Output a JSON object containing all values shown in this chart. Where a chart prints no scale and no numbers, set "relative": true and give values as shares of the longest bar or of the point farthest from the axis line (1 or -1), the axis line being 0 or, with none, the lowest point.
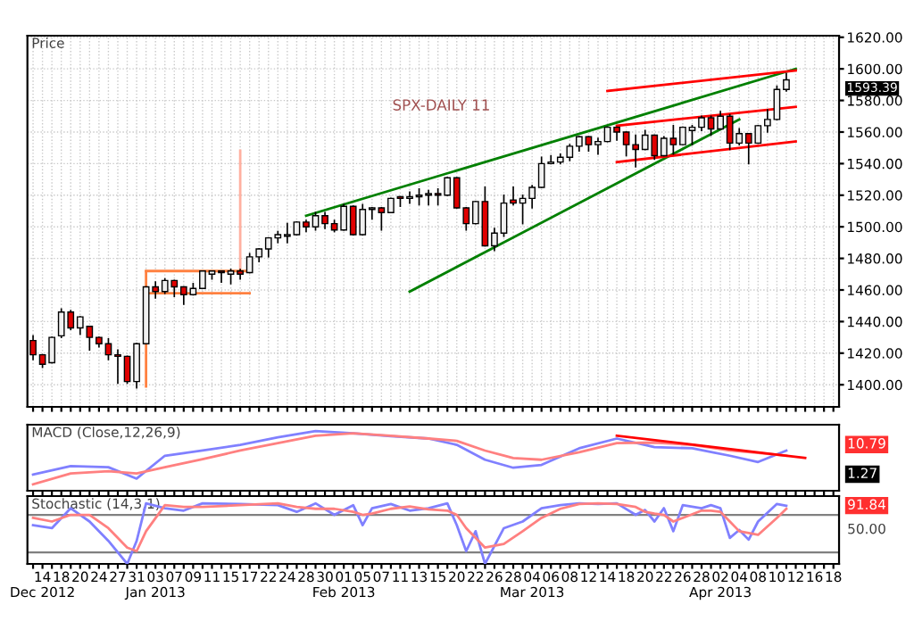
{
  "chart_data": [
    {
      "type": "candlestick",
      "title": "SPX-DAILY 11",
      "ylabel": "Price",
      "tick_labels": "y",
      "categories": [
        null,
        null,
        null,
        null,
        null,
        null,
        null,
        null,
        null,
        null,
        null,
        null,
        null,
        null,
        null,
        null,
        null,
        null,
        null,
        null,
        null,
        null,
        null,
        null,
        null,
        null,
        null,
        null,
        null,
        null,
        null,
        null,
        null,
        null,
        null,
        null,
        null,
        null,
        null,
        null,
        null,
        null,
        null,
        null,
        null,
        null,
        null,
        null,
        null,
        null,
        null,
        null,
        null,
        null,
        null,
        null,
        null,
        null,
        null,
        null,
        null,
        null,
        null,
        null,
        null,
        null,
        null,
        null,
        null,
        null,
        null,
        null,
        null,
        null,
        null,
        null,
        null,
        null,
        null,
        null,
        null,
        null,
        null,
        null,
        null,
        null
      ],
      "ohlc": [
        [
          1428,
          1431,
          1416,
          1419
        ],
        [
          1419,
          1419,
          1411,
          1413
        ],
        [
          1414,
          1430,
          1414,
          1430
        ],
        [
          1431,
          1448,
          1430,
          1446
        ],
        [
          1446,
          1447,
          1435,
          1436
        ],
        [
          1436,
          1443,
          1432,
          1443
        ],
        [
          1437,
          1437,
          1422,
          1430
        ],
        [
          1430,
          1430,
          1424,
          1426
        ],
        [
          1426,
          1429,
          1416,
          1419
        ],
        [
          1419,
          1422,
          1401,
          1418
        ],
        [
          1418,
          1418,
          1401,
          1402
        ],
        [
          1402,
          1426,
          1398,
          1426
        ],
        [
          1426,
          1462,
          1426,
          1462
        ],
        [
          1462,
          1465,
          1455,
          1459
        ],
        [
          1459,
          1467,
          1458,
          1466
        ],
        [
          1466,
          1466,
          1456,
          1462
        ],
        [
          1462,
          1462,
          1451,
          1457
        ],
        [
          1457,
          1464,
          1457,
          1461
        ],
        [
          1461,
          1472,
          1461,
          1472
        ],
        [
          1470,
          1472,
          1467,
          1472
        ],
        [
          1472,
          1472,
          1465,
          1471
        ],
        [
          1470,
          1473,
          1464,
          1472
        ],
        [
          1472,
          1473,
          1467,
          1470
        ],
        [
          1471,
          1483,
          1471,
          1481
        ],
        [
          1481,
          1486,
          1478,
          1486
        ],
        [
          1486,
          1493,
          1481,
          1493
        ],
        [
          1493,
          1497,
          1490,
          1495
        ],
        [
          1494,
          1502,
          1490,
          1495
        ],
        [
          1495,
          1503,
          1495,
          1503
        ],
        [
          1503,
          1504,
          1497,
          1500
        ],
        [
          1500,
          1509,
          1498,
          1507
        ],
        [
          1507,
          1509,
          1499,
          1502
        ],
        [
          1502,
          1504,
          1497,
          1498
        ],
        [
          1498,
          1514,
          1498,
          1513
        ],
        [
          1513,
          1513,
          1495,
          1495
        ],
        [
          1495,
          1514,
          1495,
          1511
        ],
        [
          1511,
          1512,
          1505,
          1512
        ],
        [
          1512,
          1512,
          1498,
          1509
        ],
        [
          1509,
          1518,
          1509,
          1518
        ],
        [
          1519,
          1519,
          1513,
          1518
        ],
        [
          1518,
          1522,
          1515,
          1519
        ],
        [
          1519,
          1524,
          1514,
          1520
        ],
        [
          1520,
          1523,
          1514,
          1521
        ],
        [
          1521,
          1524,
          1514,
          1520
        ],
        [
          1520,
          1531,
          1520,
          1531
        ],
        [
          1531,
          1531,
          1512,
          1512
        ],
        [
          1512,
          1512,
          1498,
          1502
        ],
        [
          1502,
          1516,
          1502,
          1516
        ],
        [
          1516,
          1525,
          1488,
          1488
        ],
        [
          1488,
          1499,
          1485,
          1496
        ],
        [
          1496,
          1520,
          1494,
          1515
        ],
        [
          1517,
          1525,
          1514,
          1515
        ],
        [
          1515,
          1520,
          1502,
          1518
        ],
        [
          1518,
          1526,
          1512,
          1525
        ],
        [
          1525,
          1544,
          1525,
          1540
        ],
        [
          1540,
          1545,
          1540,
          1541
        ],
        [
          1541,
          1546,
          1540,
          1544
        ],
        [
          1544,
          1552,
          1542,
          1551
        ],
        [
          1551,
          1557,
          1548,
          1557
        ],
        [
          1557,
          1557,
          1548,
          1552
        ],
        [
          1552,
          1556,
          1546,
          1554
        ],
        [
          1554,
          1563,
          1554,
          1563
        ],
        [
          1563,
          1563,
          1555,
          1560
        ],
        [
          1560,
          1560,
          1545,
          1552
        ],
        [
          1552,
          1558,
          1538,
          1549
        ],
        [
          1549,
          1561,
          1549,
          1558
        ],
        [
          1558,
          1558,
          1543,
          1545
        ],
        [
          1545,
          1557,
          1545,
          1556
        ],
        [
          1556,
          1564,
          1546,
          1552
        ],
        [
          1552,
          1563,
          1552,
          1563
        ],
        [
          1561,
          1564,
          1552,
          1563
        ],
        [
          1563,
          1570,
          1561,
          1569
        ],
        [
          1569,
          1570,
          1558,
          1562
        ],
        [
          1562,
          1573,
          1562,
          1570
        ],
        [
          1570,
          1571,
          1549,
          1553
        ],
        [
          1553,
          1562,
          1552,
          1559
        ],
        [
          1559,
          1559,
          1540,
          1553
        ],
        [
          1553,
          1564,
          1553,
          1564
        ],
        [
          1564,
          1574,
          1560,
          1568
        ],
        [
          1568,
          1589,
          1568,
          1587
        ],
        [
          1587,
          1597,
          1586,
          1593
        ],
        null,
        null,
        null,
        null,
        null
      ],
      "colors": [
        "#e00000",
        "#e00000",
        "#f0f0f0",
        "#f0f0f0",
        "#e00000",
        "#f0f0f0",
        "#e00000",
        "#e00000",
        "#e00000",
        "#e00000",
        "#e00000",
        "#f0f0f0",
        "#f0f0f0",
        "#e00000",
        "#f0f0f0",
        "#e00000",
        "#e00000",
        "#f0f0f0",
        "#f0f0f0",
        "#f0f0f0",
        "#e00000",
        "#f0f0f0",
        "#e00000",
        "#f0f0f0",
        "#f0f0f0",
        "#f0f0f0",
        "#f0f0f0",
        "#f0f0f0",
        "#f0f0f0",
        "#e00000",
        "#f0f0f0",
        "#e00000",
        "#e00000",
        "#f0f0f0",
        "#e00000",
        "#f0f0f0",
        "#f0f0f0",
        "#e00000",
        "#f0f0f0",
        "#e00000",
        "#f0f0f0",
        "#f0f0f0",
        "#f0f0f0",
        "#e00000",
        "#f0f0f0",
        "#e00000",
        "#e00000",
        "#f0f0f0",
        "#e00000",
        "#f0f0f0",
        "#f0f0f0",
        "#e00000",
        "#f0f0f0",
        "#f0f0f0",
        "#f0f0f0",
        "#f0f0f0",
        "#f0f0f0",
        "#f0f0f0",
        "#f0f0f0",
        "#e00000",
        "#f0f0f0",
        "#f0f0f0",
        "#e00000",
        "#e00000",
        "#e00000",
        "#f0f0f0",
        "#e00000",
        "#f0f0f0",
        "#e00000",
        "#f0f0f0",
        "#f0f0f0",
        "#f0f0f0",
        "#e00000",
        "#f0f0f0",
        "#e00000",
        "#f0f0f0",
        "#e00000",
        "#f0f0f0",
        "#f0f0f0",
        "#f0f0f0",
        "#f0f0f0",
        null,
        null,
        null,
        null,
        null
      ],
      "series": [
        {
          "type": "line",
          "color": "#008000",
          "values": [
            null,
            null,
            null,
            null,
            null,
            null,
            null,
            null,
            null,
            null,
            null,
            null,
            null,
            null,
            null,
            null,
            null,
            null,
            null,
            null,
            null,
            null,
            null,
            null,
            null,
            null,
            null,
            null,
            null,
            1507,
            null,
            null,
            null,
            null,
            null,
            null,
            null,
            null,
            null,
            null,
            null,
            null,
            null,
            null,
            null,
            null,
            null,
            null,
            null,
            null,
            null,
            null,
            null,
            null,
            null,
            null,
            null,
            null,
            null,
            null,
            null,
            null,
            null,
            null,
            null,
            null,
            null,
            null,
            null,
            null,
            null,
            null,
            null,
            null,
            null,
            null,
            null,
            null,
            null,
            null,
            null,
            1600,
            null,
            null,
            null,
            null
          ]
        },
        {
          "type": "line",
          "color": "#008000",
          "values": [
            null,
            null,
            null,
            null,
            null,
            null,
            null,
            null,
            null,
            null,
            null,
            null,
            null,
            null,
            null,
            null,
            null,
            null,
            null,
            null,
            null,
            null,
            null,
            null,
            null,
            null,
            null,
            null,
            null,
            null,
            null,
            null,
            null,
            null,
            null,
            null,
            null,
            null,
            null,
            null,
            1459,
            null,
            null,
            null,
            null,
            null,
            null,
            null,
            null,
            null,
            null,
            null,
            null,
            null,
            null,
            null,
            null,
            null,
            null,
            null,
            null,
            null,
            null,
            null,
            null,
            null,
            null,
            null,
            null,
            null,
            null,
            null,
            null,
            null,
            null,
            1568,
            null,
            null,
            null,
            null,
            null,
            null,
            null,
            null,
            null,
            null
          ]
        },
        {
          "type": "line",
          "color": "#ff0000",
          "values": [
            null,
            null,
            null,
            null,
            null,
            null,
            null,
            null,
            null,
            null,
            null,
            null,
            null,
            null,
            null,
            null,
            null,
            null,
            null,
            null,
            null,
            null,
            null,
            null,
            null,
            null,
            null,
            null,
            null,
            null,
            null,
            null,
            null,
            null,
            null,
            null,
            null,
            null,
            null,
            null,
            null,
            null,
            null,
            null,
            null,
            null,
            null,
            null,
            null,
            null,
            null,
            null,
            null,
            null,
            null,
            null,
            null,
            null,
            null,
            null,
            null,
            1586,
            null,
            null,
            null,
            null,
            null,
            null,
            null,
            null,
            null,
            null,
            null,
            null,
            null,
            null,
            null,
            null,
            null,
            null,
            null,
            1599,
            null,
            null,
            null,
            null
          ]
        },
        {
          "type": "line",
          "color": "#ff0000",
          "values": [
            null,
            null,
            null,
            null,
            null,
            null,
            null,
            null,
            null,
            null,
            null,
            null,
            null,
            null,
            null,
            null,
            null,
            null,
            null,
            null,
            null,
            null,
            null,
            null,
            null,
            null,
            null,
            null,
            null,
            null,
            null,
            null,
            null,
            null,
            null,
            null,
            null,
            null,
            null,
            null,
            null,
            null,
            null,
            null,
            null,
            null,
            null,
            null,
            null,
            null,
            null,
            null,
            null,
            null,
            null,
            null,
            null,
            null,
            null,
            null,
            null,
            null,
            1564,
            null,
            null,
            null,
            null,
            null,
            null,
            null,
            null,
            null,
            null,
            null,
            null,
            null,
            null,
            null,
            null,
            null,
            null,
            1576,
            null,
            null,
            null,
            null
          ]
        },
        {
          "type": "line",
          "color": "#ff0000",
          "values": [
            null,
            null,
            null,
            null,
            null,
            null,
            null,
            null,
            null,
            null,
            null,
            null,
            null,
            null,
            null,
            null,
            null,
            null,
            null,
            null,
            null,
            null,
            null,
            null,
            null,
            null,
            null,
            null,
            null,
            null,
            null,
            null,
            null,
            null,
            null,
            null,
            null,
            null,
            null,
            null,
            null,
            null,
            null,
            null,
            null,
            null,
            null,
            null,
            null,
            null,
            null,
            null,
            null,
            null,
            null,
            null,
            null,
            null,
            null,
            null,
            null,
            null,
            1541,
            null,
            null,
            null,
            null,
            null,
            null,
            null,
            null,
            null,
            null,
            null,
            null,
            null,
            null,
            null,
            null,
            null,
            null,
            1554,
            null,
            null,
            null,
            null
          ]
        },
        {
          "type": "line",
          "color": "#ff8040",
          "values": [
            null,
            null,
            null,
            null,
            null,
            null,
            null,
            null,
            null,
            null,
            null,
            null,
            1472,
            null,
            null,
            null,
            null,
            null,
            null,
            null,
            null,
            null,
            null,
            1472,
            null,
            null,
            null,
            null,
            null,
            null,
            null,
            null,
            null,
            null,
            null,
            null,
            null,
            null,
            null,
            null,
            null,
            null,
            null,
            null,
            null,
            null,
            null,
            null,
            null,
            null,
            null,
            null,
            null,
            null,
            null,
            null,
            null,
            null,
            null,
            null,
            null,
            null,
            null,
            null,
            null,
            null,
            null,
            null,
            null,
            null,
            null,
            null,
            null,
            null,
            null,
            null,
            null,
            null,
            null,
            null,
            null,
            null,
            null,
            null,
            null,
            null
          ]
        },
        {
          "type": "line",
          "color": "#ff8040",
          "values": [
            null,
            null,
            null,
            null,
            null,
            null,
            null,
            null,
            null,
            null,
            null,
            null,
            1458,
            null,
            null,
            null,
            null,
            null,
            null,
            null,
            null,
            null,
            null,
            1458,
            null,
            null,
            null,
            null,
            null,
            null,
            null,
            null,
            null,
            null,
            null,
            null,
            null,
            null,
            null,
            null,
            null,
            null,
            null,
            null,
            null,
            null,
            null,
            null,
            null,
            null,
            null,
            null,
            null,
            null,
            null,
            null,
            null,
            null,
            null,
            null,
            null,
            null,
            null,
            null,
            null,
            null,
            null,
            null,
            null,
            null,
            null,
            null,
            null,
            null,
            null,
            null,
            null,
            null,
            null,
            null,
            null,
            null,
            null,
            null,
            null,
            null
          ]
        }
      ],
      "annotations": [
        "1593.39"
      ],
      "ylim": [
        1386,
        1621
      ],
      "yticks": [
        {
          "value": 1400,
          "label": "1400.00"
        },
        {
          "value": 1420,
          "label": "1420.00"
        },
        {
          "value": 1440,
          "label": "1440.00"
        },
        {
          "value": 1460,
          "label": "1460.00"
        },
        {
          "value": 1480,
          "label": "1480.00"
        },
        {
          "value": 1500,
          "label": "1500.00"
        },
        {
          "value": 1520,
          "label": "1520.00"
        },
        {
          "value": 1540,
          "label": "1540.00"
        },
        {
          "value": 1560,
          "label": "1560.00"
        },
        {
          "value": 1580,
          "label": "1580.00"
        },
        {
          "value": 1600,
          "label": "1600.00"
        },
        {
          "value": 1620,
          "label": "1620.00"
        }
      ],
      "grid": true
    },
    {
      "type": "line",
      "title": "MACD (Close,12,26,9)",
      "relative": true,
      "tick_labels": false,
      "categories": [
        null,
        null,
        null,
        null,
        null,
        null,
        null,
        null,
        null,
        null,
        null,
        null,
        null,
        null,
        null,
        null,
        null,
        null,
        null,
        null,
        null,
        null,
        null,
        null,
        null,
        null,
        null,
        null,
        null,
        null,
        null,
        null,
        null,
        null,
        null,
        null,
        null,
        null,
        null,
        null,
        null,
        null,
        null,
        null,
        null,
        null,
        null,
        null,
        null,
        null,
        null,
        null,
        null,
        null,
        null,
        null,
        null,
        null,
        null,
        null,
        null,
        null,
        null,
        null,
        null,
        null,
        null,
        null,
        null,
        null,
        null,
        null,
        null,
        null,
        null,
        null,
        null,
        null,
        null,
        null,
        null,
        null,
        null,
        null,
        null,
        null
      ],
      "series": [
        {
          "type": "line",
          "color": "#8080ff",
          "values": [
            0.24,
            null,
            null,
            null,
            0.39,
            null,
            null,
            null,
            0.37,
            null,
            null,
            0.17,
            null,
            null,
            0.57,
            null,
            null,
            null,
            0.66,
            null,
            null,
            null,
            0.76,
            null,
            null,
            null,
            0.89,
            null,
            null,
            null,
            1,
            null,
            null,
            null,
            0.96,
            null,
            null,
            null,
            0.91,
            null,
            null,
            null,
            0.87,
            null,
            null,
            0.76,
            null,
            null,
            0.5,
            null,
            null,
            0.36,
            null,
            null,
            0.41,
            null,
            null,
            null,
            0.7,
            null,
            null,
            null,
            0.87,
            null,
            null,
            null,
            0.72,
            null,
            null,
            null,
            0.7,
            null,
            null,
            null,
            0.57,
            null,
            null,
            0.46,
            null,
            null,
            0.66,
            null,
            null,
            null,
            null,
            null
          ]
        },
        {
          "type": "line",
          "color": "#ff8080",
          "values": [
            0.07,
            null,
            null,
            null,
            0.26,
            null,
            null,
            null,
            0.3,
            null,
            null,
            0.26,
            null,
            null,
            0.37,
            null,
            null,
            null,
            0.51,
            null,
            null,
            null,
            0.66,
            null,
            null,
            null,
            0.79,
            null,
            null,
            null,
            0.92,
            null,
            null,
            null,
            0.96,
            null,
            null,
            null,
            0.92,
            null,
            null,
            null,
            0.87,
            null,
            null,
            0.83,
            null,
            null,
            0.66,
            null,
            null,
            0.53,
            null,
            null,
            0.5,
            null,
            null,
            null,
            0.63,
            null,
            null,
            null,
            0.79,
            null,
            null,
            null,
            0.8,
            null,
            null,
            null,
            0.76,
            null,
            null,
            null,
            0.66,
            null,
            null,
            0.62,
            null,
            null,
            0.57,
            null,
            null,
            null,
            null,
            null
          ]
        },
        {
          "type": "line",
          "color": "#ff0000",
          "values": [
            null,
            null,
            null,
            null,
            null,
            null,
            null,
            null,
            null,
            null,
            null,
            null,
            null,
            null,
            null,
            null,
            null,
            null,
            null,
            null,
            null,
            null,
            null,
            null,
            null,
            null,
            null,
            null,
            null,
            null,
            null,
            null,
            null,
            null,
            null,
            null,
            null,
            null,
            null,
            null,
            null,
            null,
            null,
            null,
            null,
            null,
            null,
            null,
            null,
            null,
            null,
            null,
            null,
            null,
            null,
            null,
            null,
            null,
            null,
            null,
            null,
            null,
            0.92,
            null,
            null,
            null,
            null,
            null,
            null,
            null,
            null,
            null,
            null,
            null,
            null,
            null,
            null,
            null,
            null,
            null,
            null,
            null,
            0.53,
            null,
            null,
            null
          ]
        }
      ],
      "annotations": [
        "10.79",
        "1.27"
      ]
    },
    {
      "type": "line",
      "title": "Stochastic (14,3,1)",
      "relative": true,
      "categories": [
        null,
        "14\nDec 2012",
        null,
        "18",
        null,
        "20",
        null,
        "24",
        null,
        "27",
        null,
        "31",
        null,
        "03\nJan 2013",
        null,
        "07",
        null,
        "09",
        null,
        "11",
        null,
        "15",
        null,
        "17",
        null,
        "22",
        null,
        "24",
        null,
        "28",
        null,
        "30",
        null,
        "01\nFeb 2013",
        null,
        "05",
        null,
        "07",
        null,
        "11",
        null,
        "13",
        null,
        "15",
        null,
        "20",
        null,
        "22",
        null,
        "26",
        null,
        "28",
        null,
        "04\nMar 2013",
        null,
        "06",
        null,
        "08",
        null,
        "12",
        null,
        "14",
        null,
        "18",
        null,
        "20",
        null,
        "22",
        null,
        "26",
        null,
        "28",
        null,
        "02\nApr 2013",
        null,
        "04",
        null,
        "08",
        null,
        "10",
        null,
        "12",
        null,
        "16",
        null,
        "18"
      ],
      "series": [
        {
          "type": "line",
          "color": "#8080ff",
          "values": [
            0.64,
            null,
            0.59,
            null,
            0.92,
            null,
            0.7,
            null,
            0.38,
            null,
            0,
            0.38,
            1,
            null,
            0.92,
            null,
            0.88,
            null,
            1,
            null,
            null,
            null,
            0.99,
            null,
            null,
            null,
            0.97,
            null,
            0.86,
            null,
            1,
            null,
            0.81,
            null,
            0.97,
            0.64,
            0.92,
            null,
            0.99,
            null,
            0.88,
            null,
            0.92,
            null,
            1,
            0.64,
            0.21,
            0.54,
            0,
            null,
            0.59,
            null,
            0.7,
            null,
            0.92,
            null,
            0.97,
            null,
            1,
            null,
            0.99,
            null,
            1,
            null,
            0.81,
            0.89,
            0.7,
            0.92,
            0.54,
            0.97,
            null,
            0.92,
            0.97,
            0.92,
            0.43,
            0.56,
            0.4,
            0.7,
            null,
            0.99,
            0.96,
            null,
            null,
            null,
            null,
            null
          ]
        },
        {
          "type": "line",
          "color": "#ff8080",
          "values": [
            0.76,
            null,
            0.7,
            null,
            0.81,
            null,
            0.81,
            null,
            0.59,
            null,
            0.27,
            0.21,
            0.54,
            null,
            0.97,
            null,
            0.94,
            null,
            0.94,
            null,
            null,
            null,
            0.97,
            null,
            null,
            null,
            1,
            null,
            0.94,
            null,
            0.91,
            null,
            0.91,
            null,
            0.86,
            0.81,
            0.83,
            null,
            0.91,
            null,
            0.95,
            null,
            0.9,
            null,
            0.88,
            0.81,
            0.59,
            0.43,
            0.27,
            null,
            0.33,
            null,
            0.54,
            null,
            0.76,
            null,
            0.91,
            null,
            0.99,
            null,
            1,
            null,
            0.99,
            null,
            0.94,
            0.86,
            0.83,
            0.81,
            0.7,
            0.76,
            null,
            0.88,
            0.88,
            0.86,
            0.7,
            0.54,
            0.51,
            0.48,
            null,
            0.76,
            0.91,
            null,
            null,
            null,
            null,
            null
          ]
        }
      ],
      "ref_lines": [
        {
          "axis": "y",
          "value": 0.81,
          "color": "#808080"
        },
        {
          "axis": "y",
          "value": 0.19,
          "color": "#808080"
        }
      ],
      "annotations": [
        "91.84",
        "50.00"
      ]
    }
  ]
}
